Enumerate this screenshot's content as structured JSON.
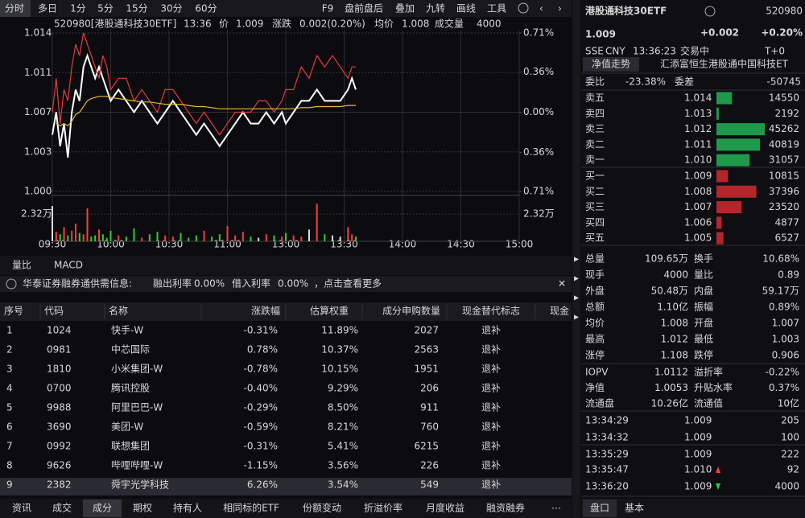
{
  "toolbar": {
    "periods": [
      "分时",
      "多日",
      "1分",
      "5分",
      "15分",
      "30分",
      "60分"
    ],
    "tools": [
      "F9",
      "盘前盘后",
      "叠加",
      "九转",
      "画线",
      "工具"
    ]
  },
  "quote_header": {
    "code_name": "520980[港股通科技30ETF]",
    "time": "13:36",
    "price_label": "价",
    "price": "1.009",
    "change_label": "涨跌",
    "change": "0.002(0.20%)",
    "avg_label": "均价",
    "avg": "1.008",
    "volume_label": "成交量",
    "volume": "4000"
  },
  "chart_data": [
    {
      "type": "line",
      "x": [
        "09:30",
        "09:32",
        "09:34",
        "09:36",
        "09:38",
        "09:40",
        "09:42",
        "09:44",
        "09:46",
        "09:48",
        "09:50",
        "09:52",
        "09:54",
        "09:56",
        "09:58",
        "10:00",
        "10:04",
        "10:08",
        "10:12",
        "10:16",
        "10:20",
        "10:24",
        "10:28",
        "10:32",
        "10:36",
        "10:40",
        "10:44",
        "10:48",
        "10:52",
        "10:56",
        "11:00",
        "11:04",
        "11:08",
        "11:12",
        "11:16",
        "11:20",
        "11:24",
        "11:28",
        "13:00",
        "13:04",
        "13:08",
        "13:12",
        "13:16",
        "13:20",
        "13:24",
        "13:28",
        "13:32",
        "13:34",
        "13:36"
      ],
      "series": [
        {
          "color": "#ffffff",
          "values": [
            1.005,
            1.007,
            1.004,
            1.006,
            1.003,
            1.007,
            1.009,
            1.008,
            1.011,
            1.012,
            1.011,
            1.01,
            1.011,
            1.01,
            1.009,
            1.008,
            1.009,
            1.008,
            1.007,
            1.008,
            1.007,
            1.006,
            1.007,
            1.008,
            1.007,
            1.006,
            1.005,
            1.006,
            1.005,
            1.004,
            1.005,
            1.006,
            1.007,
            1.006,
            1.006,
            1.007,
            1.006,
            1.007,
            1.006,
            1.007,
            1.008,
            1.008,
            1.009,
            1.008,
            1.008,
            1.008,
            1.009,
            1.01,
            1.009
          ]
        },
        {
          "color": "#e83a3a",
          "values": [
            1.007,
            1.01,
            1.006,
            1.009,
            1.008,
            1.011,
            1.013,
            1.012,
            1.014,
            1.013,
            1.012,
            1.011,
            1.01,
            1.012,
            1.011,
            1.009,
            1.01,
            1.01,
            1.008,
            1.009,
            1.008,
            1.007,
            1.009,
            1.009,
            1.008,
            1.007,
            1.006,
            1.007,
            1.006,
            1.005,
            1.006,
            1.007,
            1.007,
            1.007,
            1.008,
            1.008,
            1.007,
            1.008,
            1.009,
            1.009,
            1.011,
            1.01,
            1.012,
            1.011,
            1.012,
            1.011,
            1.01,
            1.011,
            1.011
          ]
        },
        {
          "color": "#e8b830",
          "values": [
            null,
            1.006,
            1.0058,
            1.006,
            1.0058,
            1.0062,
            1.0068,
            1.007,
            1.0075,
            1.008,
            1.0082,
            1.0083,
            1.0084,
            1.0084,
            1.0084,
            1.0083,
            1.0082,
            1.0081,
            1.008,
            1.0079,
            1.0079,
            1.0078,
            1.0077,
            1.0077,
            1.0077,
            1.0076,
            1.0075,
            1.0075,
            1.0074,
            1.0073,
            1.0073,
            1.0073,
            1.0073,
            1.0073,
            1.0073,
            1.0073,
            1.0073,
            1.0073,
            1.0073,
            1.0073,
            1.0074,
            1.0074,
            1.0075,
            1.0075,
            1.0075,
            1.0075,
            1.0076,
            1.0076,
            1.0076
          ]
        }
      ],
      "ylim": [
        1.0,
        1.014
      ],
      "yticks": [
        1.014,
        {
          "value": 1.0105,
          "label": "1.011"
        },
        1.007,
        {
          "value": 1.0035,
          "label": "1.003"
        },
        {
          "value": 1.0,
          "label": "1.000"
        }
      ],
      "y2lim": [
        -0.71,
        0.71
      ],
      "y2ticks": [
        {
          "value": 0.71,
          "label": "0.71%"
        },
        {
          "value": 0.36,
          "label": "0.36%"
        },
        {
          "value": 0,
          "label": "0.00%"
        },
        {
          "value": -0.36,
          "label": "0.36%"
        },
        {
          "value": -0.71,
          "label": "0.71%"
        }
      ],
      "xticks": [
        "09:30",
        "10:00",
        "10:30",
        "11:00",
        "13:00",
        "13:30",
        "14:00",
        "14:30",
        "15:00"
      ],
      "grid": true
    },
    {
      "type": "bar",
      "x": [
        "09:30",
        "09:32",
        "09:34",
        "09:36",
        "09:38",
        "09:40",
        "09:42",
        "09:44",
        "09:46",
        "09:48",
        "09:50",
        "09:52",
        "09:54",
        "09:56",
        "09:58",
        "10:00",
        "10:04",
        "10:08",
        "10:12",
        "10:16",
        "10:20",
        "10:24",
        "10:28",
        "10:32",
        "10:36",
        "10:40",
        "10:44",
        "10:48",
        "10:52",
        "10:56",
        "11:00",
        "11:04",
        "11:08",
        "11:12",
        "11:16",
        "11:20",
        "11:24",
        "11:28",
        "13:00",
        "13:04",
        "13:08",
        "13:12",
        "13:16",
        "13:20",
        "13:24",
        "13:28",
        "13:32",
        "13:34",
        "13:36"
      ],
      "values": [
        3.0,
        0.8,
        0.6,
        1.2,
        0.5,
        0.9,
        1.5,
        0.7,
        0.6,
        2.8,
        0.4,
        0.5,
        1.0,
        0.6,
        0.3,
        0.9,
        0.5,
        0.4,
        1.1,
        0.3,
        0.6,
        0.8,
        0.5,
        0.4,
        0.7,
        0.3,
        0.5,
        0.9,
        0.4,
        0.6,
        1.3,
        0.5,
        0.8,
        0.4,
        0.3,
        0.6,
        0.5,
        0.4,
        0.7,
        0.5,
        0.4,
        1.0,
        3.2,
        0.6,
        0.5,
        0.4,
        1.2,
        0.6,
        0.4
      ],
      "ylim": [
        0,
        3.76
      ],
      "yticks": [
        {
          "value": 2.32,
          "label": "2.32万"
        }
      ]
    }
  ],
  "sub_tabs": [
    "量比",
    "MACD"
  ],
  "notice": {
    "source": "华泰证券融券通供需信息:",
    "lend_label": "融出利率",
    "lend_rate": "0.00%",
    "borrow_label": "借入利率",
    "borrow_rate": "0.00%",
    "more": "，点击查看更多"
  },
  "table": {
    "headers": [
      "序号",
      "代码",
      "名称",
      "涨跌幅",
      "估算权重",
      "成分申购数量",
      "现金替代标志",
      "现金"
    ],
    "rows": [
      [
        "1",
        "1024",
        "快手-W",
        "-0.31%",
        "11.89%",
        "2027",
        "退补"
      ],
      [
        "2",
        "0981",
        "中芯国际",
        "0.78%",
        "10.37%",
        "2563",
        "退补"
      ],
      [
        "3",
        "1810",
        "小米集团-W",
        "-0.78%",
        "10.15%",
        "1951",
        "退补"
      ],
      [
        "4",
        "0700",
        "腾讯控股",
        "-0.40%",
        "9.29%",
        "206",
        "退补"
      ],
      [
        "5",
        "9988",
        "阿里巴巴-W",
        "-0.29%",
        "8.50%",
        "911",
        "退补"
      ],
      [
        "6",
        "3690",
        "美团-W",
        "-0.59%",
        "8.21%",
        "760",
        "退补"
      ],
      [
        "7",
        "0992",
        "联想集团",
        "-0.31%",
        "5.41%",
        "6215",
        "退补"
      ],
      [
        "8",
        "9626",
        "哔哩哔哩-W",
        "-1.15%",
        "3.56%",
        "226",
        "退补"
      ],
      [
        "9",
        "2382",
        "舜宇光学科技",
        "6.26%",
        "3.54%",
        "549",
        "退补"
      ]
    ]
  },
  "bottom_tabs": [
    "资讯",
    "成交",
    "成分",
    "期权",
    "持有人",
    "相同标的ETF",
    "份额变动",
    "折溢价率",
    "月度收益",
    "融资融券"
  ],
  "side": {
    "name": "港股通科技30ETF",
    "code": "520980",
    "price": "1.009",
    "change": "+0.002",
    "pct": "+0.20%",
    "market": "SSE",
    "currency": "CNY",
    "time": "13:36:23",
    "status": "交易中",
    "tplus": "T+0",
    "nav_tab": "净值走势",
    "fund": "汇添富恒生港股通中国科技ET",
    "ratio_label": "委比",
    "ratio": "-23.38%",
    "diff_label": "委差",
    "diff": "-50745",
    "asks": [
      {
        "label": "卖五",
        "price": "1.014",
        "volume": 14550
      },
      {
        "label": "卖四",
        "price": "1.013",
        "volume": 2192
      },
      {
        "label": "卖三",
        "price": "1.012",
        "volume": 45262
      },
      {
        "label": "卖二",
        "price": "1.011",
        "volume": 40819
      },
      {
        "label": "卖一",
        "price": "1.010",
        "volume": 31057
      }
    ],
    "bids": [
      {
        "label": "买一",
        "price": "1.009",
        "volume": 10815
      },
      {
        "label": "买二",
        "price": "1.008",
        "volume": 37396
      },
      {
        "label": "买三",
        "price": "1.007",
        "volume": 23520
      },
      {
        "label": "买四",
        "price": "1.006",
        "volume": 4877
      },
      {
        "label": "买五",
        "price": "1.005",
        "volume": 6527
      }
    ],
    "stats": [
      [
        {
          "label": "总量",
          "value": "109.65万"
        },
        {
          "label": "换手",
          "value": "10.68%"
        }
      ],
      [
        {
          "label": "现手",
          "value": "4000"
        },
        {
          "label": "量比",
          "value": "0.89"
        }
      ],
      [
        {
          "label": "外盘",
          "value": "50.48万",
          "color": "#ff3b3b"
        },
        {
          "label": "内盘",
          "value": "59.17万",
          "color": "#33cc33"
        }
      ],
      [
        {
          "label": "总额",
          "value": "1.10亿"
        },
        {
          "label": "振幅",
          "value": "0.89%"
        }
      ],
      [
        {
          "label": "均价",
          "value": "1.008",
          "color": "#ff3b3b"
        },
        {
          "label": "开盘",
          "value": "1.007"
        }
      ],
      [
        {
          "label": "最高",
          "value": "1.012",
          "color": "#ff3b3b"
        },
        {
          "label": "最低",
          "value": "1.003",
          "color": "#33cc33"
        }
      ],
      [
        {
          "label": "涨停",
          "value": "1.108",
          "color": "#ff3b3b"
        },
        {
          "label": "跌停",
          "value": "0.906",
          "color": "#33cc33"
        }
      ]
    ],
    "stats2": [
      [
        {
          "label": "IOPV",
          "value": "1.0112"
        },
        {
          "label": "溢折率",
          "value": "-0.22%",
          "color": "#33cc33"
        }
      ],
      [
        {
          "label": "净值",
          "value": "1.0053",
          "color": "#33cc33"
        },
        {
          "label": "升贴水率",
          "value": "0.37%",
          "color": "#ff3b3b"
        }
      ],
      [
        {
          "label": "流通盘",
          "value": "10.26亿"
        },
        {
          "label": "流通值",
          "value": "10亿"
        }
      ]
    ],
    "trades": [
      {
        "time": "13:34:29",
        "price": "1.009",
        "volume": "205",
        "color": "#33cc33"
      },
      {
        "time": "13:34:32",
        "price": "1.009",
        "volume": "100",
        "color": "#33cc33"
      },
      {
        "time": "13:35:29",
        "price": "1.009",
        "volume": "222",
        "color": "#33cc33"
      },
      {
        "time": "13:35:47",
        "price": "1.010",
        "volume": "92",
        "color": "#ff3b3b",
        "trend": "up"
      },
      {
        "time": "13:36:20",
        "price": "1.009",
        "volume": "4000",
        "color": "#33cc33",
        "trend": "down"
      }
    ],
    "tabs": [
      "盘口",
      "基本"
    ]
  }
}
